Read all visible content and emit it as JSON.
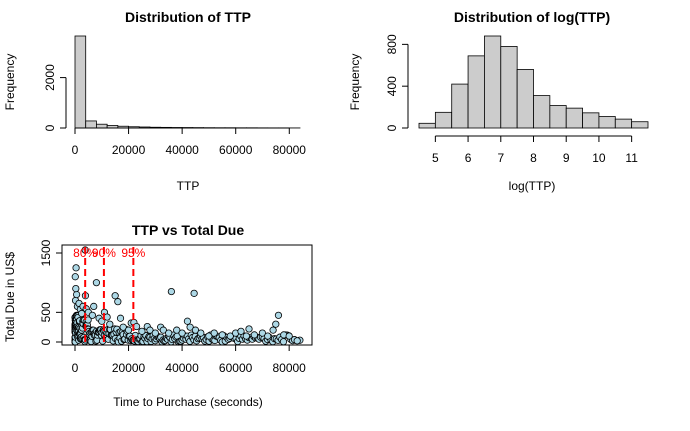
{
  "colors": {
    "hist_fill": "#cccccc",
    "point_fill": "#add8e6",
    "line": "#000000",
    "annotation": "#ff0000"
  },
  "chart_data": [
    {
      "type": "bar",
      "title": "Distribution of TTP",
      "xlabel": "TTP",
      "ylabel": "Frequency",
      "bin_width": 4000,
      "bin_starts": [
        0,
        4000,
        8000,
        12000,
        16000,
        20000,
        24000,
        28000,
        32000,
        36000,
        40000,
        44000,
        48000,
        52000,
        56000,
        60000,
        64000,
        68000,
        72000,
        76000,
        80000
      ],
      "values": [
        3650,
        280,
        150,
        100,
        70,
        50,
        40,
        30,
        25,
        20,
        18,
        15,
        12,
        10,
        10,
        8,
        8,
        6,
        5,
        5,
        3
      ],
      "xlim": [
        0,
        84000
      ],
      "ylim": [
        0,
        3650
      ],
      "xticks": [
        0,
        20000,
        40000,
        60000,
        80000
      ],
      "yticks": [
        0,
        2000
      ]
    },
    {
      "type": "bar",
      "title": "Distribution of log(TTP)",
      "xlabel": "log(TTP)",
      "ylabel": "Frequency",
      "bin_width": 0.5,
      "bin_starts": [
        4.5,
        5.0,
        5.5,
        6.0,
        6.5,
        7.0,
        7.5,
        8.0,
        8.5,
        9.0,
        9.5,
        10.0,
        10.5,
        11.0
      ],
      "values": [
        45,
        150,
        420,
        690,
        880,
        780,
        560,
        310,
        215,
        190,
        145,
        110,
        85,
        60
      ],
      "xlim": [
        4.5,
        11.5
      ],
      "ylim": [
        0,
        880
      ],
      "xticks": [
        5,
        6,
        7,
        8,
        9,
        10,
        11
      ],
      "yticks": [
        0,
        400,
        800
      ]
    },
    {
      "type": "scatter",
      "title": "TTP vs Total Due",
      "xlabel": "Time to Purchase (seconds)",
      "ylabel": "Total Due in US$",
      "xlim": [
        0,
        86000
      ],
      "ylim": [
        0,
        1600
      ],
      "xticks": [
        0,
        20000,
        40000,
        60000,
        80000
      ],
      "yticks": [
        0,
        500,
        1500
      ],
      "points": [
        [
          100,
          1100
        ],
        [
          400,
          1250
        ],
        [
          200,
          700
        ],
        [
          600,
          800
        ],
        [
          300,
          900
        ],
        [
          900,
          600
        ],
        [
          1500,
          650
        ],
        [
          2000,
          550
        ],
        [
          2500,
          480
        ],
        [
          3000,
          600
        ],
        [
          3800,
          1550
        ],
        [
          3900,
          780
        ],
        [
          4200,
          560
        ],
        [
          5000,
          500
        ],
        [
          6500,
          450
        ],
        [
          7000,
          600
        ],
        [
          8000,
          1000
        ],
        [
          9000,
          400
        ],
        [
          10000,
          350
        ],
        [
          11000,
          500
        ],
        [
          12000,
          420
        ],
        [
          13000,
          300
        ],
        [
          15000,
          780
        ],
        [
          16000,
          680
        ],
        [
          17000,
          400
        ],
        [
          18000,
          250
        ],
        [
          20000,
          200
        ],
        [
          21000,
          320
        ],
        [
          22000,
          330
        ],
        [
          23000,
          260
        ],
        [
          25000,
          180
        ],
        [
          27000,
          260
        ],
        [
          28000,
          200
        ],
        [
          30000,
          150
        ],
        [
          32000,
          250
        ],
        [
          33000,
          200
        ],
        [
          35000,
          150
        ],
        [
          36000,
          850
        ],
        [
          38000,
          200
        ],
        [
          40000,
          150
        ],
        [
          42000,
          350
        ],
        [
          43000,
          250
        ],
        [
          44500,
          820
        ],
        [
          45000,
          200
        ],
        [
          47000,
          150
        ],
        [
          50000,
          100
        ],
        [
          52000,
          150
        ],
        [
          55000,
          120
        ],
        [
          58000,
          100
        ],
        [
          60000,
          150
        ],
        [
          62000,
          180
        ],
        [
          64000,
          100
        ],
        [
          65000,
          220
        ],
        [
          67000,
          120
        ],
        [
          70000,
          150
        ],
        [
          72000,
          100
        ],
        [
          74000,
          200
        ],
        [
          75000,
          300
        ],
        [
          76000,
          450
        ],
        [
          78000,
          120
        ],
        [
          80000,
          100
        ],
        [
          84000,
          30
        ],
        [
          83000,
          20
        ]
      ],
      "vlines": [
        {
          "label": "80%",
          "x": 3800
        },
        {
          "label": "90%",
          "x": 10800
        },
        {
          "label": "95%",
          "x": 21800
        }
      ]
    }
  ]
}
